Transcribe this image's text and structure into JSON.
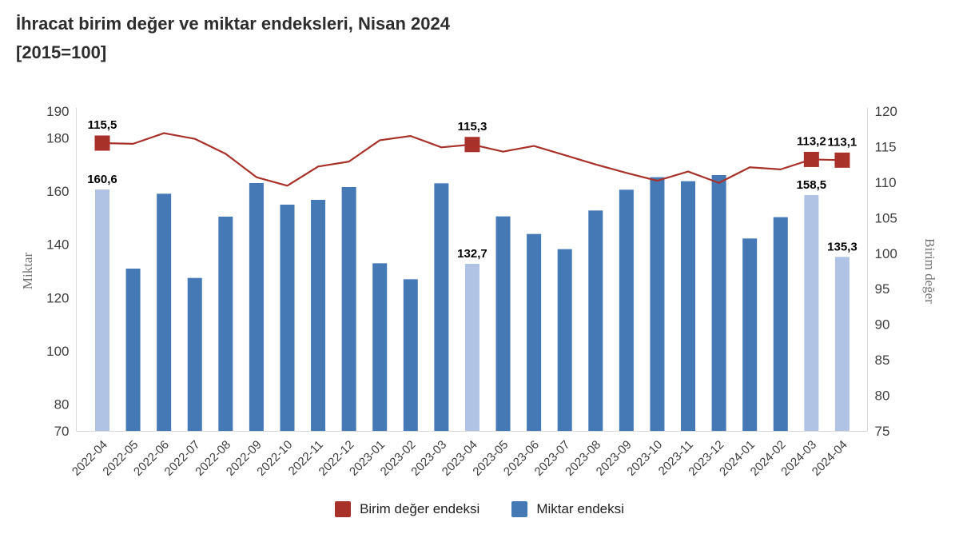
{
  "title": {
    "line1": "İhracat birim değer ve miktar endeksleri, Nisan 2024",
    "line2": "[2015=100]"
  },
  "chart_data": {
    "type": "combo",
    "categories": [
      "2022-04",
      "2022-05",
      "2022-06",
      "2022-07",
      "2022-08",
      "2022-09",
      "2022-10",
      "2022-11",
      "2022-12",
      "2023-01",
      "2023-02",
      "2023-03",
      "2023-04",
      "2023-05",
      "2023-06",
      "2023-07",
      "2023-08",
      "2023-09",
      "2023-10",
      "2023-11",
      "2023-12",
      "2024-01",
      "2024-02",
      "2024-03",
      "2024-04"
    ],
    "series": [
      {
        "name": "Birim değer endeksi",
        "type": "line",
        "axis": "right",
        "color": "#a8322a",
        "values": [
          115.5,
          115.4,
          116.9,
          116.1,
          114.0,
          110.7,
          109.5,
          112.2,
          112.9,
          115.9,
          116.5,
          114.9,
          115.3,
          114.3,
          115.1,
          113.8,
          112.5,
          111.3,
          110.2,
          111.5,
          109.9,
          112.1,
          111.8,
          113.2,
          113.1
        ],
        "marker_indices": [
          0,
          12,
          23,
          24
        ],
        "point_labels": {
          "0": "115,5",
          "12": "115,3",
          "23": "113,2",
          "24": "113,1"
        }
      },
      {
        "name": "Miktar endeksi",
        "type": "bar",
        "axis": "left",
        "color": "#4479b5",
        "highlight_color": "#b0c3e4",
        "highlight_indices": [
          0,
          12,
          23,
          24
        ],
        "values": [
          160.6,
          130.9,
          159.0,
          127.4,
          150.4,
          163.0,
          154.9,
          156.7,
          161.5,
          132.9,
          126.9,
          162.9,
          132.7,
          150.5,
          143.9,
          138.2,
          152.7,
          160.5,
          165.2,
          163.7,
          166.0,
          142.2,
          150.2,
          158.5,
          135.3
        ],
        "point_labels": {
          "0": "160,6",
          "12": "132,7",
          "23": "158,5",
          "24": "135,3"
        }
      }
    ],
    "axes": {
      "left": {
        "title": "Miktar",
        "min": 70,
        "max": 190,
        "ticks": [
          190,
          180,
          160,
          140,
          120,
          100,
          80,
          70
        ]
      },
      "right": {
        "title": "Birim değer",
        "min": 75,
        "max": 120,
        "ticks": [
          120,
          115,
          110,
          105,
          100,
          95,
          90,
          85,
          80,
          75
        ]
      }
    },
    "grid": "off",
    "legend_position": "bottom",
    "legend": [
      {
        "label": "Birim değer endeksi",
        "color": "#a8322a"
      },
      {
        "label": "Miktar endeksi",
        "color": "#4479b5"
      }
    ]
  },
  "style_colors": {
    "axis_line": "#d9d9d9",
    "tick_text": "#404040",
    "axis_title_text": "#737373",
    "value_label_text": "#000000"
  }
}
